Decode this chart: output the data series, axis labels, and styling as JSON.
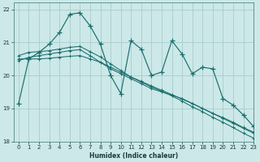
{
  "xlabel": "Humidex (Indice chaleur)",
  "bg_color": "#cce8e8",
  "grid_color": "#aacccc",
  "line_color": "#1a6e6e",
  "xlim": [
    -0.5,
    23
  ],
  "ylim": [
    18,
    22.2
  ],
  "yticks": [
    18,
    19,
    20,
    21,
    22
  ],
  "xticks": [
    0,
    1,
    2,
    3,
    4,
    5,
    6,
    7,
    8,
    9,
    10,
    11,
    12,
    13,
    14,
    15,
    16,
    17,
    18,
    19,
    20,
    21,
    22,
    23
  ],
  "line1_x": [
    0,
    1,
    2,
    3,
    4,
    5,
    6,
    7,
    8,
    9,
    10,
    11,
    12,
    13,
    14,
    15,
    16,
    17,
    18,
    19,
    20,
    21,
    22,
    23
  ],
  "line1_y": [
    19.15,
    20.5,
    20.7,
    20.95,
    21.3,
    21.85,
    21.9,
    21.5,
    20.95,
    20.0,
    19.45,
    21.05,
    20.8,
    20.0,
    20.1,
    21.05,
    20.65,
    20.05,
    20.25,
    20.2,
    19.3,
    19.1,
    18.8,
    18.45
  ],
  "line2_x": [
    0,
    1,
    2,
    3,
    4,
    5,
    6,
    7,
    8,
    9,
    10,
    11,
    12,
    13,
    14,
    15,
    16,
    17,
    18,
    19,
    20,
    21,
    22,
    23
  ],
  "line2_y": [
    20.45,
    20.55,
    20.6,
    20.65,
    20.7,
    20.75,
    20.78,
    20.6,
    20.4,
    20.2,
    20.05,
    19.9,
    19.75,
    19.6,
    19.5,
    19.4,
    19.3,
    19.15,
    19.0,
    18.85,
    18.7,
    18.55,
    18.4,
    18.25
  ],
  "line3_x": [
    0,
    1,
    2,
    3,
    4,
    5,
    6,
    7,
    8,
    9,
    10,
    11,
    12,
    13,
    14,
    15,
    16,
    17,
    18,
    19,
    20,
    21,
    22,
    23
  ],
  "line3_y": [
    20.5,
    20.5,
    20.5,
    20.52,
    20.55,
    20.58,
    20.6,
    20.5,
    20.4,
    20.25,
    20.1,
    19.95,
    19.82,
    19.68,
    19.55,
    19.42,
    19.28,
    19.15,
    19.0,
    18.85,
    18.72,
    18.58,
    18.42,
    18.28
  ],
  "line4_x": [
    0,
    1,
    2,
    3,
    4,
    5,
    6,
    7,
    8,
    9,
    10,
    11,
    12,
    13,
    14,
    15,
    16,
    17,
    18,
    19,
    20,
    21,
    22,
    23
  ],
  "line4_y": [
    20.6,
    20.7,
    20.72,
    20.75,
    20.8,
    20.85,
    20.88,
    20.72,
    20.56,
    20.35,
    20.15,
    19.95,
    19.8,
    19.65,
    19.52,
    19.38,
    19.22,
    19.05,
    18.9,
    18.73,
    18.58,
    18.42,
    18.25,
    18.1
  ],
  "marker_size": 2.5
}
